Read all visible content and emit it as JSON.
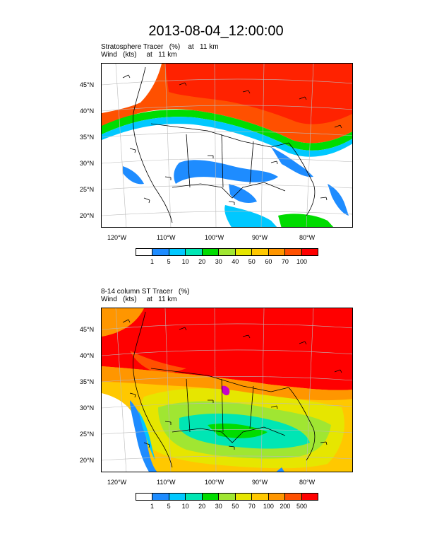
{
  "title": "2013-08-04_12:00:00",
  "panels": [
    {
      "subtitle_line1": "Stratosphere Tracer   (%)    at   11 km",
      "subtitle_line2": "Wind   (kts)     at   11 km",
      "lat_labels": [
        "45°N",
        "40°N",
        "35°N",
        "30°N",
        "25°N",
        "20°N"
      ],
      "lon_labels": [
        "120°W",
        "110°W",
        "100°W",
        "90°W",
        "80°W"
      ],
      "colorbar_labels": [
        "1",
        "5",
        "10",
        "20",
        "30",
        "40",
        "50",
        "60",
        "70",
        "100"
      ]
    },
    {
      "subtitle_line1": "8-14 column ST Tracer   (%)",
      "subtitle_line2": "Wind   (kts)     at   11 km",
      "lat_labels": [
        "45°N",
        "40°N",
        "35°N",
        "30°N",
        "25°N",
        "20°N"
      ],
      "lon_labels": [
        "120°W",
        "110°W",
        "100°W",
        "90°W",
        "80°W"
      ],
      "colorbar_labels": [
        "1",
        "5",
        "10",
        "20",
        "30",
        "50",
        "70",
        "100",
        "200",
        "500"
      ]
    }
  ],
  "palette": [
    "#ffffff",
    "#1e8cff",
    "#00c8ff",
    "#00e6b4",
    "#00dc00",
    "#a0e632",
    "#e6e600",
    "#ffc800",
    "#ff9600",
    "#ff5000",
    "#ff0000"
  ]
}
